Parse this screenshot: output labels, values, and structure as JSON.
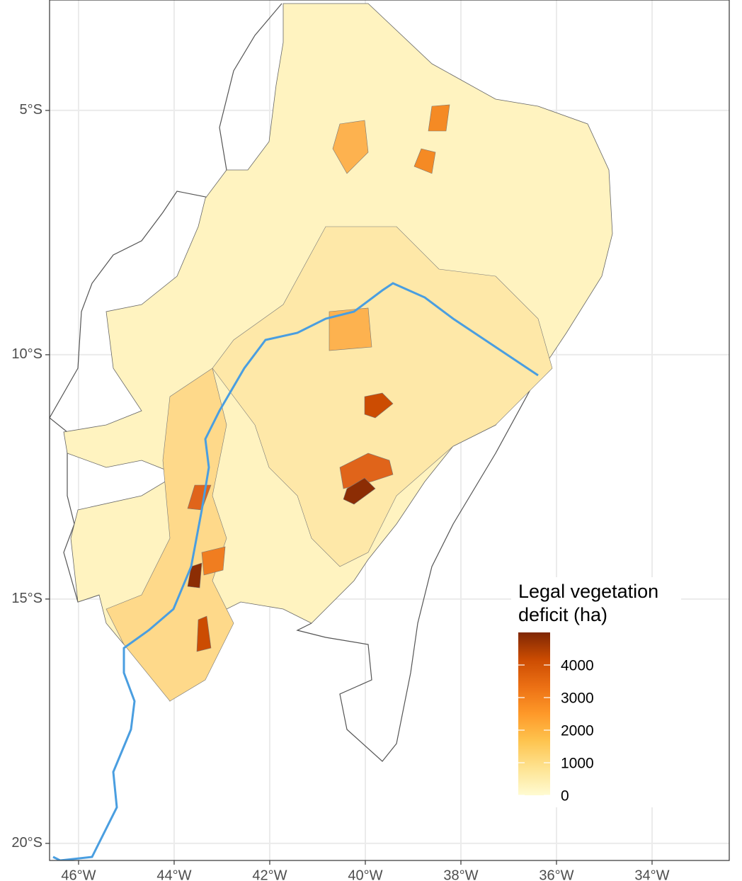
{
  "map": {
    "type": "choropleth",
    "xlim": [
      -46.607,
      -32.385
    ],
    "ylim": [
      -20.35,
      -2.74
    ],
    "xticks": [
      {
        "value": -46,
        "label": "46°W"
      },
      {
        "value": -44,
        "label": "44°W"
      },
      {
        "value": -42,
        "label": "42°W"
      },
      {
        "value": -40,
        "label": "40°W"
      },
      {
        "value": -38,
        "label": "38°W"
      },
      {
        "value": -36,
        "label": "36°W"
      },
      {
        "value": -34,
        "label": "34°W"
      }
    ],
    "yticks": [
      {
        "value": -5,
        "label": "5°S"
      },
      {
        "value": -10,
        "label": "10°S"
      },
      {
        "value": -15,
        "label": "15°S"
      },
      {
        "value": -20,
        "label": "20°S"
      }
    ],
    "grid": true,
    "legend": {
      "title": [
        "Legal vegetation",
        "deficit (ha)"
      ],
      "lim": [
        0,
        5000
      ],
      "ticks": [
        0,
        1000,
        2000,
        3000,
        4000
      ],
      "colors": [
        "#fffbd2",
        "#fee391",
        "#fec44f",
        "#fe9929",
        "#ec7014",
        "#cc4c02",
        "#7f2704"
      ]
    }
  }
}
